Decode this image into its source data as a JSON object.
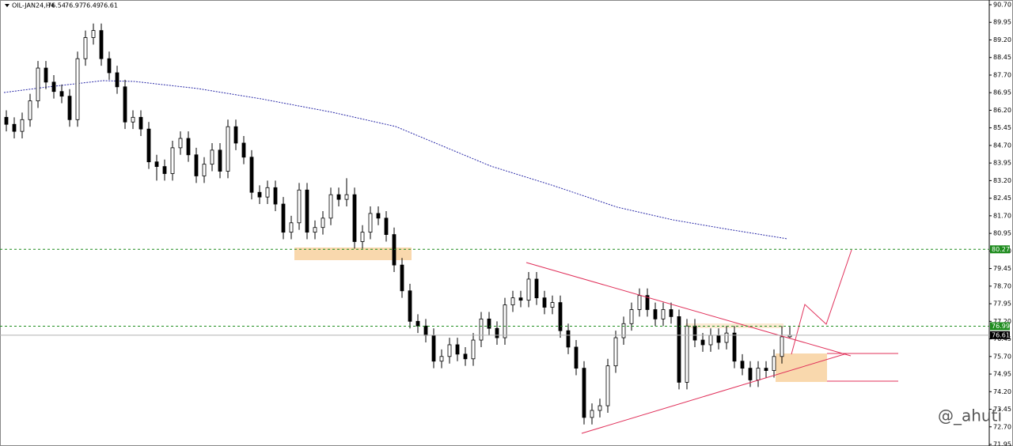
{
  "chart_data": {
    "type": "candlestick",
    "title": "OIL-JAN24,H4",
    "watermark": "@_ahuti",
    "up_color": "#ffffff",
    "down_color": "#000000",
    "grid": false,
    "ylim": [
      71.95,
      90.7
    ],
    "yticks": [
      {
        "value": 90.7,
        "label": "90.70"
      },
      89.95,
      {
        "value": 89.2,
        "label": "89.20"
      },
      88.45,
      {
        "value": 87.7,
        "label": "87.70"
      },
      86.95,
      {
        "value": 86.2,
        "label": "86.20"
      },
      85.45,
      {
        "value": 84.7,
        "label": "84.70"
      },
      83.95,
      {
        "value": 83.2,
        "label": "83.20"
      },
      82.45,
      {
        "value": 81.7,
        "label": "81.70"
      },
      80.95,
      {
        "value": 80.2,
        "label": "80.20"
      },
      79.45,
      {
        "value": 78.7,
        "label": "78.70"
      },
      77.95,
      {
        "value": 77.2,
        "label": "77.20"
      },
      76.45,
      {
        "value": 75.7,
        "label": "75.70"
      },
      74.95,
      {
        "value": 74.2,
        "label": "74.20"
      },
      73.45,
      {
        "value": 72.7,
        "label": "72.70"
      },
      71.95
    ],
    "levels": [
      {
        "value": 80.27,
        "color": "#1e8c1e",
        "dashed": true,
        "label_bg": "#1e8c1e"
      },
      {
        "value": 76.99,
        "color": "#1e8c1e",
        "dashed": true,
        "label_bg": "#1e8c1e"
      },
      {
        "value": 76.61,
        "color": "#b0b0b0",
        "dashed": false,
        "label_bg": "#000000"
      }
    ],
    "open": [
      85.9,
      85.6,
      85.3,
      85.8,
      86.6,
      88.0,
      87.4,
      87.0,
      86.8,
      85.8,
      88.4,
      89.3,
      89.6,
      88.4,
      87.8,
      87.2,
      85.7,
      85.9,
      85.4,
      84.0,
      83.8,
      83.5,
      84.6,
      85.0,
      84.3,
      83.4,
      83.9,
      84.5,
      83.6,
      85.5,
      84.8,
      84.2,
      82.7,
      82.5,
      82.9,
      82.2,
      81.0,
      81.4,
      82.8,
      81.0,
      81.2,
      81.6,
      82.6,
      82.4,
      82.6,
      80.6,
      81.0,
      81.8,
      81.6,
      80.9,
      79.6,
      78.5,
      77.2,
      77.0,
      76.6,
      75.5,
      75.7,
      76.2,
      75.8,
      75.6,
      76.4,
      77.3,
      76.9,
      76.5,
      77.9,
      78.2,
      78.1,
      79.0,
      78.2,
      77.8,
      78.0,
      76.8,
      76.1,
      75.2,
      73.1,
      73.4,
      73.6,
      75.3,
      76.5,
      77.1,
      77.7,
      78.3,
      77.7,
      77.3,
      77.7,
      77.4,
      74.6,
      77.0,
      76.4,
      76.2,
      76.6,
      76.3,
      76.7,
      75.5,
      75.2,
      74.7,
      75.2,
      75.1,
      75.7,
      76.54
    ],
    "high": [
      86.2,
      85.9,
      86.1,
      86.9,
      88.3,
      88.3,
      87.7,
      87.3,
      87.1,
      88.7,
      89.6,
      89.9,
      89.9,
      88.7,
      88.1,
      87.5,
      86.2,
      86.2,
      85.7,
      84.3,
      84.1,
      84.9,
      85.3,
      85.3,
      84.6,
      84.2,
      84.8,
      84.8,
      85.8,
      85.8,
      85.1,
      84.5,
      83.0,
      83.2,
      83.2,
      82.5,
      81.7,
      83.1,
      83.1,
      81.5,
      81.9,
      82.9,
      82.9,
      83.3,
      82.9,
      81.3,
      82.1,
      82.1,
      81.9,
      81.2,
      79.9,
      78.8,
      77.5,
      77.3,
      76.9,
      76.0,
      76.5,
      76.5,
      76.1,
      76.7,
      77.6,
      77.6,
      77.2,
      78.2,
      78.5,
      78.5,
      79.3,
      79.3,
      78.5,
      78.3,
      78.3,
      77.1,
      76.4,
      75.5,
      73.7,
      73.9,
      75.6,
      76.8,
      77.4,
      78.0,
      78.6,
      78.6,
      78.0,
      78.0,
      78.0,
      77.7,
      77.3,
      77.3,
      76.7,
      76.9,
      76.9,
      77.0,
      77.0,
      75.8,
      75.5,
      75.5,
      75.5,
      76.0,
      77.0,
      76.97
    ],
    "low": [
      85.3,
      85.0,
      85.0,
      85.5,
      86.3,
      87.1,
      86.7,
      86.5,
      85.5,
      85.5,
      88.1,
      89.0,
      88.1,
      87.5,
      86.9,
      85.4,
      85.4,
      85.1,
      83.7,
      83.2,
      83.2,
      83.2,
      84.3,
      84.0,
      83.1,
      83.1,
      83.6,
      83.3,
      83.3,
      84.5,
      83.9,
      82.4,
      82.2,
      82.2,
      81.9,
      80.7,
      80.7,
      81.1,
      80.7,
      80.7,
      80.9,
      81.3,
      82.1,
      82.1,
      80.3,
      80.3,
      80.7,
      81.3,
      80.6,
      79.3,
      78.2,
      76.9,
      76.7,
      76.3,
      75.2,
      75.2,
      75.4,
      75.5,
      75.3,
      75.3,
      76.1,
      76.6,
      76.2,
      76.2,
      77.6,
      77.8,
      77.8,
      77.9,
      77.5,
      77.5,
      76.5,
      75.8,
      74.9,
      72.8,
      72.8,
      73.1,
      73.3,
      75.0,
      76.2,
      76.8,
      77.4,
      77.4,
      77.0,
      77.0,
      77.1,
      74.3,
      74.3,
      76.1,
      75.9,
      75.9,
      76.0,
      76.0,
      75.2,
      74.9,
      74.4,
      74.4,
      74.8,
      74.8,
      75.4,
      76.49
    ],
    "close": [
      85.6,
      85.3,
      85.8,
      86.6,
      88.0,
      87.4,
      87.0,
      86.8,
      85.8,
      88.4,
      89.3,
      89.6,
      88.4,
      87.8,
      87.2,
      85.7,
      85.9,
      85.4,
      84.0,
      83.8,
      83.5,
      84.6,
      85.0,
      84.3,
      83.4,
      83.9,
      84.5,
      83.6,
      85.5,
      84.8,
      84.2,
      82.7,
      82.5,
      82.9,
      82.2,
      81.0,
      81.4,
      82.8,
      81.0,
      81.2,
      81.6,
      82.6,
      82.4,
      82.6,
      80.6,
      81.0,
      81.8,
      81.6,
      80.9,
      79.6,
      78.5,
      77.2,
      77.0,
      76.6,
      75.5,
      75.7,
      76.2,
      75.8,
      75.6,
      76.4,
      77.3,
      76.9,
      76.5,
      77.9,
      78.2,
      78.1,
      79.0,
      78.2,
      77.8,
      78.0,
      76.8,
      76.1,
      75.2,
      73.1,
      73.4,
      73.6,
      75.3,
      76.5,
      77.1,
      77.7,
      78.3,
      77.7,
      77.3,
      77.7,
      77.4,
      74.6,
      77.0,
      76.4,
      76.2,
      76.6,
      76.3,
      76.7,
      75.5,
      75.2,
      74.7,
      75.2,
      75.1,
      75.7,
      76.54,
      76.61
    ]
  }
}
